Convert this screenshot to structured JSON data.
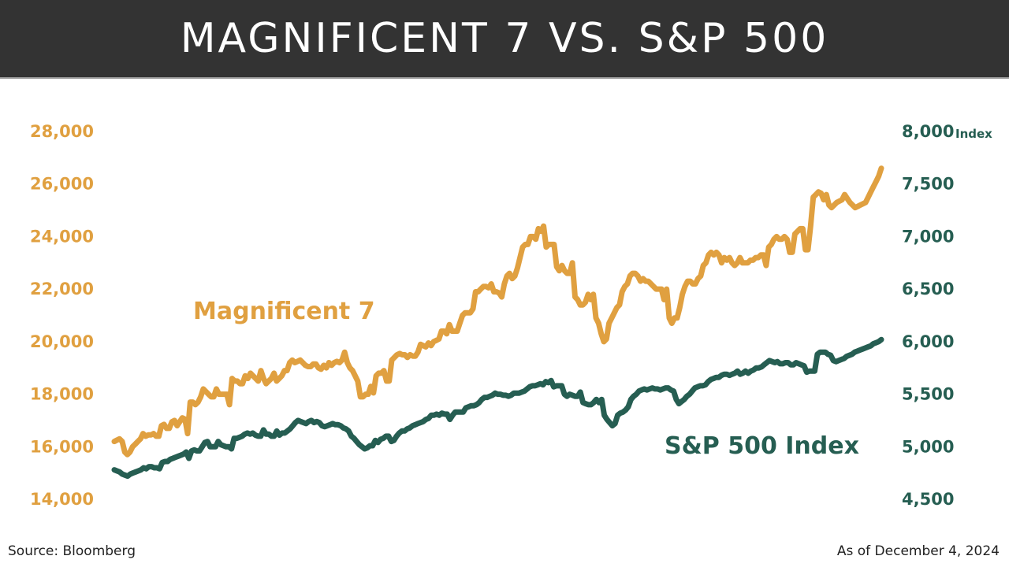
{
  "title": "MAGNIFICENT 7 VS. S&P 500",
  "source": "Source: Bloomberg",
  "as_of": "As of December 4, 2024",
  "colors": {
    "mag7": "#E0A040",
    "sp500": "#265E52",
    "title_bg": "#333333"
  },
  "chart_data": {
    "type": "line",
    "grid": false,
    "legend": "inline labels",
    "y_left": {
      "ticks": [
        "28,000",
        "26,000",
        "24,000",
        "22,000",
        "20,000",
        "18,000",
        "16,000",
        "14,000"
      ],
      "range": [
        14000,
        28000
      ]
    },
    "y_right": {
      "ticks": [
        "8,000",
        "7,500",
        "7,000",
        "6,500",
        "6,000",
        "5,500",
        "5,000",
        "4,500"
      ],
      "range": [
        4500,
        8000
      ],
      "unit": "Index"
    },
    "series": [
      {
        "name": "Magnificent 7",
        "axis": "left",
        "values": [
          16200,
          16250,
          16300,
          16200,
          15800,
          15700,
          15800,
          16000,
          16100,
          16200,
          16300,
          16500,
          16400,
          16450,
          16450,
          16500,
          16400,
          16400,
          16800,
          16850,
          16700,
          16700,
          16950,
          17000,
          16800,
          16950,
          17100,
          17050,
          16500,
          17700,
          17700,
          17600,
          17700,
          17900,
          18200,
          18100,
          18000,
          17900,
          17900,
          18200,
          18000,
          18000,
          18000,
          18000,
          17600,
          18600,
          18500,
          18500,
          18400,
          18400,
          18700,
          18600,
          18800,
          18700,
          18600,
          18500,
          18900,
          18600,
          18400,
          18500,
          18600,
          18800,
          18500,
          18600,
          18700,
          18900,
          18900,
          19200,
          19300,
          19200,
          19250,
          19300,
          19200,
          19100,
          19050,
          19050,
          19150,
          19150,
          19000,
          18950,
          19100,
          19000,
          19200,
          19100,
          19200,
          19250,
          19200,
          19300,
          19600,
          19200,
          19000,
          18900,
          18700,
          18500,
          17900,
          17900,
          18000,
          18000,
          18300,
          18050,
          18700,
          18800,
          18800,
          18900,
          18500,
          18500,
          19300,
          19400,
          19500,
          19550,
          19500,
          19500,
          19400,
          19500,
          19450,
          19450,
          19600,
          19900,
          19850,
          19800,
          19950,
          19850,
          20000,
          20050,
          20100,
          20400,
          20400,
          20300,
          20650,
          20400,
          20400,
          20400,
          20700,
          21000,
          21100,
          21100,
          21100,
          21250,
          21900,
          21900,
          22000,
          22100,
          22100,
          22050,
          22200,
          21900,
          21900,
          21850,
          21700,
          22200,
          22500,
          22600,
          22400,
          22500,
          22800,
          23200,
          23600,
          23700,
          23700,
          24000,
          24000,
          23900,
          24300,
          24200,
          24400,
          23600,
          23700,
          23700,
          23700,
          22850,
          22700,
          22900,
          22700,
          22600,
          22600,
          23000,
          21700,
          21600,
          21400,
          21400,
          21500,
          21800,
          21600,
          21800,
          20900,
          20700,
          20300,
          20000,
          20100,
          20700,
          20900,
          21100,
          21300,
          21400,
          21900,
          22100,
          22200,
          22500,
          22600,
          22600,
          22500,
          22300,
          22400,
          22300,
          22300,
          22200,
          22100,
          22000,
          22000,
          22000,
          21600,
          22000,
          20900,
          20700,
          20900,
          20900,
          21300,
          21800,
          22100,
          22300,
          22300,
          22200,
          22200,
          22400,
          22500,
          22900,
          23000,
          23300,
          23400,
          23300,
          23400,
          23300,
          23000,
          23200,
          23100,
          23200,
          23000,
          22900,
          23000,
          23200,
          23000,
          23000,
          23000,
          23100,
          23100,
          23200,
          23200,
          23300,
          23300,
          22900,
          23600,
          23700,
          23900,
          24000,
          23900,
          23900,
          24000,
          23900,
          23400,
          23400,
          24100,
          24200,
          24300,
          24300,
          23500,
          23500,
          24400,
          25500,
          25600,
          25700,
          25650,
          25400,
          25600,
          25200,
          25100,
          25200,
          25300,
          25350,
          25400,
          25600,
          25450,
          25300,
          25200,
          25100,
          25150,
          25200,
          25250,
          25300,
          25500,
          25700,
          25900,
          26100,
          26300,
          26600
        ]
      },
      {
        "name": "S&P 500 Index",
        "axis": "right",
        "values": [
          4780,
          4770,
          4760,
          4740,
          4730,
          4720,
          4740,
          4750,
          4760,
          4770,
          4780,
          4800,
          4790,
          4810,
          4810,
          4800,
          4800,
          4790,
          4850,
          4860,
          4860,
          4880,
          4890,
          4900,
          4910,
          4920,
          4930,
          4950,
          4890,
          4960,
          4970,
          4960,
          4960,
          5000,
          5040,
          5050,
          5000,
          5000,
          5000,
          5050,
          5020,
          5010,
          5000,
          5000,
          4980,
          5080,
          5080,
          5090,
          5100,
          5120,
          5130,
          5120,
          5130,
          5110,
          5100,
          5100,
          5160,
          5120,
          5120,
          5100,
          5100,
          5150,
          5110,
          5130,
          5130,
          5150,
          5170,
          5200,
          5230,
          5250,
          5240,
          5230,
          5220,
          5240,
          5250,
          5230,
          5240,
          5230,
          5200,
          5190,
          5200,
          5210,
          5220,
          5210,
          5210,
          5200,
          5180,
          5170,
          5150,
          5100,
          5080,
          5050,
          5020,
          5000,
          4980,
          4990,
          5010,
          5010,
          5060,
          5040,
          5070,
          5080,
          5100,
          5100,
          5050,
          5060,
          5100,
          5130,
          5150,
          5150,
          5170,
          5180,
          5200,
          5210,
          5220,
          5230,
          5240,
          5260,
          5270,
          5300,
          5300,
          5310,
          5300,
          5320,
          5310,
          5310,
          5260,
          5300,
          5330,
          5330,
          5330,
          5330,
          5370,
          5380,
          5390,
          5390,
          5400,
          5420,
          5450,
          5470,
          5470,
          5480,
          5490,
          5510,
          5500,
          5500,
          5490,
          5490,
          5480,
          5490,
          5510,
          5510,
          5510,
          5520,
          5530,
          5550,
          5570,
          5580,
          5580,
          5590,
          5600,
          5590,
          5620,
          5610,
          5630,
          5570,
          5580,
          5580,
          5580,
          5500,
          5480,
          5500,
          5490,
          5480,
          5480,
          5520,
          5420,
          5410,
          5400,
          5400,
          5420,
          5450,
          5420,
          5450,
          5300,
          5260,
          5230,
          5200,
          5220,
          5300,
          5320,
          5330,
          5350,
          5380,
          5450,
          5480,
          5500,
          5530,
          5540,
          5550,
          5540,
          5550,
          5560,
          5550,
          5550,
          5540,
          5550,
          5560,
          5560,
          5540,
          5530,
          5450,
          5410,
          5430,
          5450,
          5480,
          5500,
          5530,
          5560,
          5570,
          5580,
          5580,
          5590,
          5620,
          5640,
          5650,
          5660,
          5660,
          5680,
          5690,
          5690,
          5680,
          5690,
          5700,
          5720,
          5690,
          5700,
          5720,
          5700,
          5720,
          5730,
          5750,
          5750,
          5760,
          5780,
          5800,
          5820,
          5810,
          5800,
          5810,
          5790,
          5790,
          5800,
          5800,
          5780,
          5780,
          5800,
          5790,
          5780,
          5770,
          5710,
          5720,
          5720,
          5720,
          5880,
          5900,
          5900,
          5900,
          5880,
          5870,
          5820,
          5810,
          5820,
          5830,
          5840,
          5860,
          5870,
          5880,
          5900,
          5910,
          5920,
          5930,
          5940,
          5950,
          5960,
          5980,
          5990,
          6000,
          6020
        ]
      }
    ]
  },
  "labels": {
    "mag7": "Magnificent 7",
    "sp500": "S&P 500 Index"
  }
}
